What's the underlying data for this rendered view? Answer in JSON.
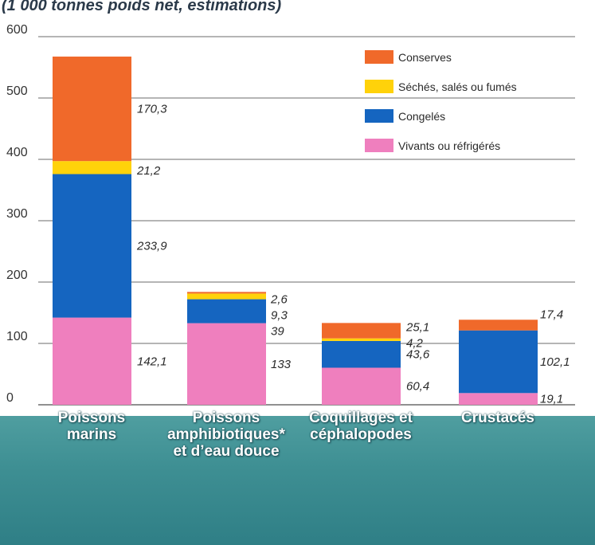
{
  "header": {
    "subtitle": "(1 000 tonnes poids net, estimations)"
  },
  "colors": {
    "conserves": "#f0692a",
    "seches": "#ffd20a",
    "congeles": "#1565c0",
    "vivants": "#ef7fbe",
    "band": "#3e8f93"
  },
  "chart_data": {
    "type": "bar",
    "stacked": true,
    "title": "",
    "subtitle": "(1 000 tonnes poids net, estimations)",
    "xlabel": "",
    "ylabel": "",
    "ylim": [
      0,
      600
    ],
    "yticks": [
      "0",
      "100",
      "200",
      "300",
      "400",
      "500",
      "600"
    ],
    "grid": true,
    "legend_position": "top-right",
    "categories": [
      "Poissons\nmarins",
      "Poissons\namphibiotiques*\net d’eau douce",
      "Coquillages et\ncéphalopodes",
      "Crustacés"
    ],
    "series": [
      {
        "name": "Vivants ou réfrigérés",
        "values": [
          142.1,
          133,
          60.4,
          19.1
        ],
        "labels": [
          "142,1",
          "133",
          "60,4",
          "19,1"
        ]
      },
      {
        "name": "Congelés",
        "values": [
          233.9,
          39,
          43.6,
          102.1
        ],
        "labels": [
          "233,9",
          "39",
          "43,6",
          "102,1"
        ]
      },
      {
        "name": "Séchés, salés ou fumés",
        "values": [
          21.2,
          9.3,
          4.2,
          0
        ],
        "labels": [
          "21,2",
          "9,3",
          "4,2",
          ""
        ]
      },
      {
        "name": "Conserves",
        "values": [
          170.3,
          2.6,
          25.1,
          17.4
        ],
        "labels": [
          "170,3",
          "2,6",
          "25,1",
          "17,4"
        ]
      }
    ],
    "legend_order": [
      "Conserves",
      "Séchés, salés ou fumés",
      "Congelés",
      "Vivants ou réfrigérés"
    ]
  }
}
